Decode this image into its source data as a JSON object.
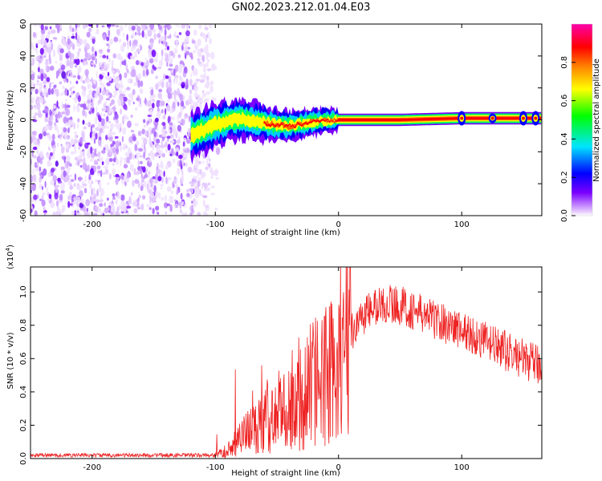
{
  "figure": {
    "title": "GN02.2023.212.01.04.E03"
  },
  "chart_data": [
    {
      "type": "heatmap",
      "title": "",
      "xlabel": "Height of straight line (km)",
      "ylabel": "Frequency (Hz)",
      "xlim": [
        -250,
        165
      ],
      "ylim": [
        -60,
        60
      ],
      "x_ticks": [
        -200,
        -100,
        0,
        100
      ],
      "y_ticks": [
        -60,
        -40,
        -20,
        0,
        20,
        40,
        60
      ],
      "grid": false,
      "colorbar": {
        "label": "Normalized spectral amplitude",
        "range": [
          0.0,
          1.0
        ],
        "ticks": [
          "0.0",
          "0.2",
          "0.4",
          "0.6",
          "0.8"
        ],
        "colors": [
          "#ffffff",
          "#e8ccff",
          "#7a00ff",
          "#0000ff",
          "#00e5ff",
          "#00ff00",
          "#ffff00",
          "#ff8000",
          "#ff0000",
          "#ff00aa"
        ]
      },
      "regions": [
        {
          "x_range": [
            -250,
            -105
          ],
          "description": "broadband noise",
          "amplitude": [
            0.0,
            0.2
          ],
          "y_range": [
            -60,
            60
          ]
        },
        {
          "x_range": [
            -120,
            165
          ],
          "description": "narrow band signal",
          "center_hz": [
            [
              -120,
              -10
            ],
            [
              -100,
              -3
            ],
            [
              -80,
              1
            ],
            [
              -60,
              -2
            ],
            [
              -40,
              -4
            ],
            [
              -20,
              -1
            ],
            [
              0,
              0
            ],
            [
              50,
              0
            ],
            [
              100,
              1
            ],
            [
              165,
              1
            ]
          ],
          "amplitude": [
            0.4,
            1.0
          ]
        }
      ]
    },
    {
      "type": "line",
      "title": "",
      "xlabel": "Height of straight line (km)",
      "ylabel": "SNR (10 * v/v)",
      "y_scale_label": "(x10",
      "y_scale_exp": "4",
      "y_scale_close": ")",
      "xlim": [
        -250,
        165
      ],
      "ylim": [
        0,
        1.15
      ],
      "x_ticks": [
        -200,
        -100,
        0,
        100
      ],
      "y_ticks": [
        0.0,
        0.2,
        0.4,
        0.6,
        0.8,
        1.0
      ],
      "grid": false,
      "color": "#ee2222",
      "series": [
        {
          "x": [
            -250,
            -200,
            -150,
            -110,
            -100,
            -90,
            -80,
            -70,
            -60,
            -50,
            -40,
            -30,
            -20,
            -10,
            0,
            10,
            20,
            30,
            40,
            50,
            60,
            80,
            100,
            120,
            140,
            165
          ],
          "values": [
            0.02,
            0.02,
            0.02,
            0.02,
            0.02,
            0.05,
            0.12,
            0.18,
            0.22,
            0.28,
            0.3,
            0.36,
            0.42,
            0.5,
            0.62,
            0.76,
            0.86,
            0.91,
            0.93,
            0.92,
            0.89,
            0.83,
            0.77,
            0.7,
            0.63,
            0.55
          ]
        }
      ]
    }
  ]
}
